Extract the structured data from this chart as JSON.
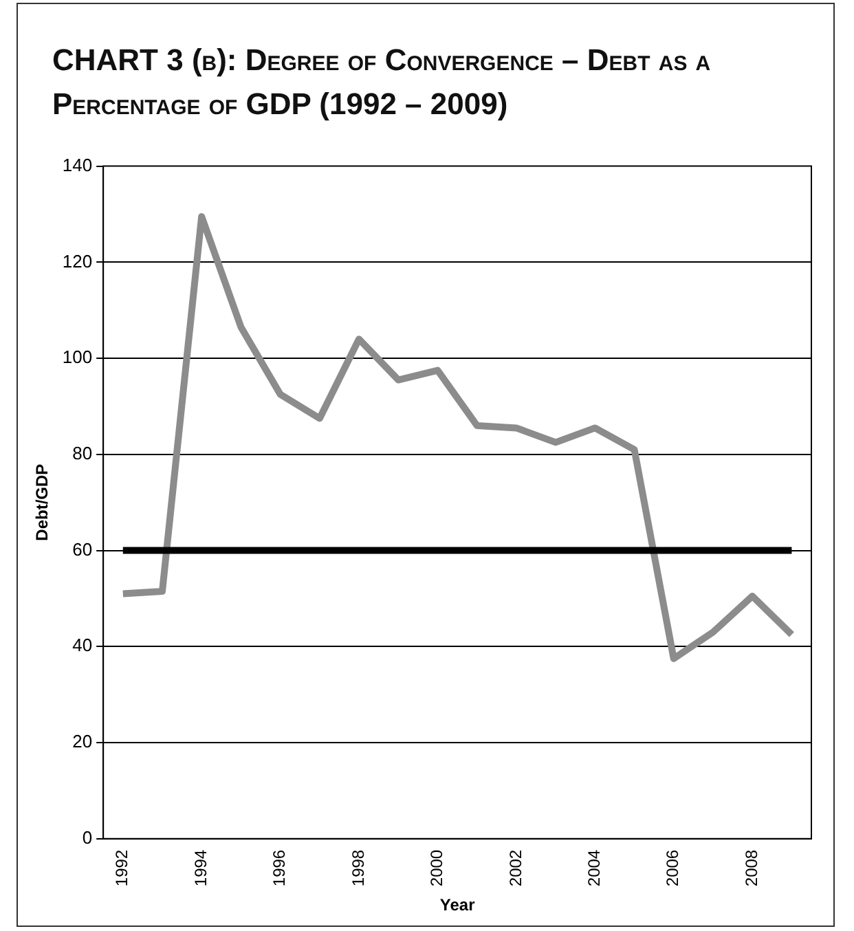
{
  "chart_data": {
    "type": "line",
    "title": "CHART 3 (b): Degree of Convergence – Debt as a Percentage of GDP (1992 – 2009)",
    "xlabel": "Year",
    "ylabel": "Debt/GDP",
    "categories": [
      "1992",
      null,
      "1994",
      null,
      "1996",
      null,
      "1998",
      null,
      "2000",
      null,
      "2002",
      null,
      "2004",
      null,
      "2006",
      null,
      "2008",
      null
    ],
    "series": [
      {
        "color": "#8c8c8c",
        "values": [
          51,
          51.5,
          129.5,
          106.5,
          92.5,
          87.5,
          104,
          95.5,
          97.5,
          86,
          85.5,
          82.5,
          85.5,
          81,
          37.5,
          43,
          50.5,
          42.5
        ]
      }
    ],
    "ylim": [
      0,
      140
    ],
    "yticks": [
      0,
      20,
      40,
      60,
      80,
      100,
      120,
      140
    ],
    "grid": "y",
    "line_style": "solid",
    "marker": "none",
    "ref_lines": [
      {
        "axis": "y",
        "value": 60,
        "color": "#000000"
      }
    ]
  }
}
